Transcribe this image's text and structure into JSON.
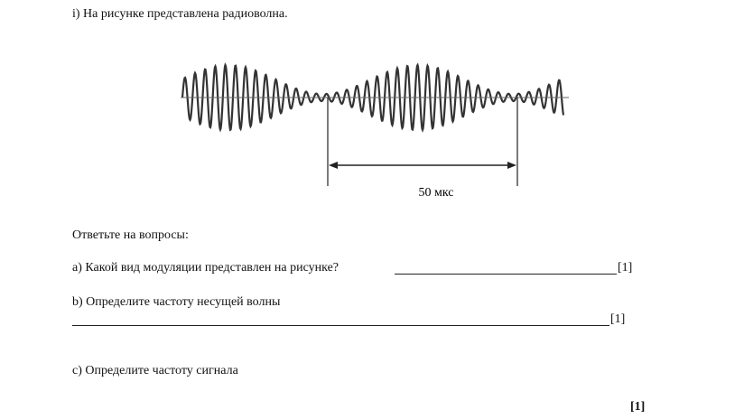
{
  "question": {
    "intro": "i) На рисунке представлена радиоволна.",
    "figure_label": "50 мкс",
    "prompt": "Ответьте на вопросы:",
    "items": [
      {
        "text": "a) Какой вид модуляции представлен на рисунке?",
        "mark": "[1]"
      },
      {
        "text": "b) Определите частоту несущей волны",
        "mark": "[1]"
      },
      {
        "text": "c) Определите частоту сигнала",
        "mark": "[1]"
      }
    ]
  }
}
